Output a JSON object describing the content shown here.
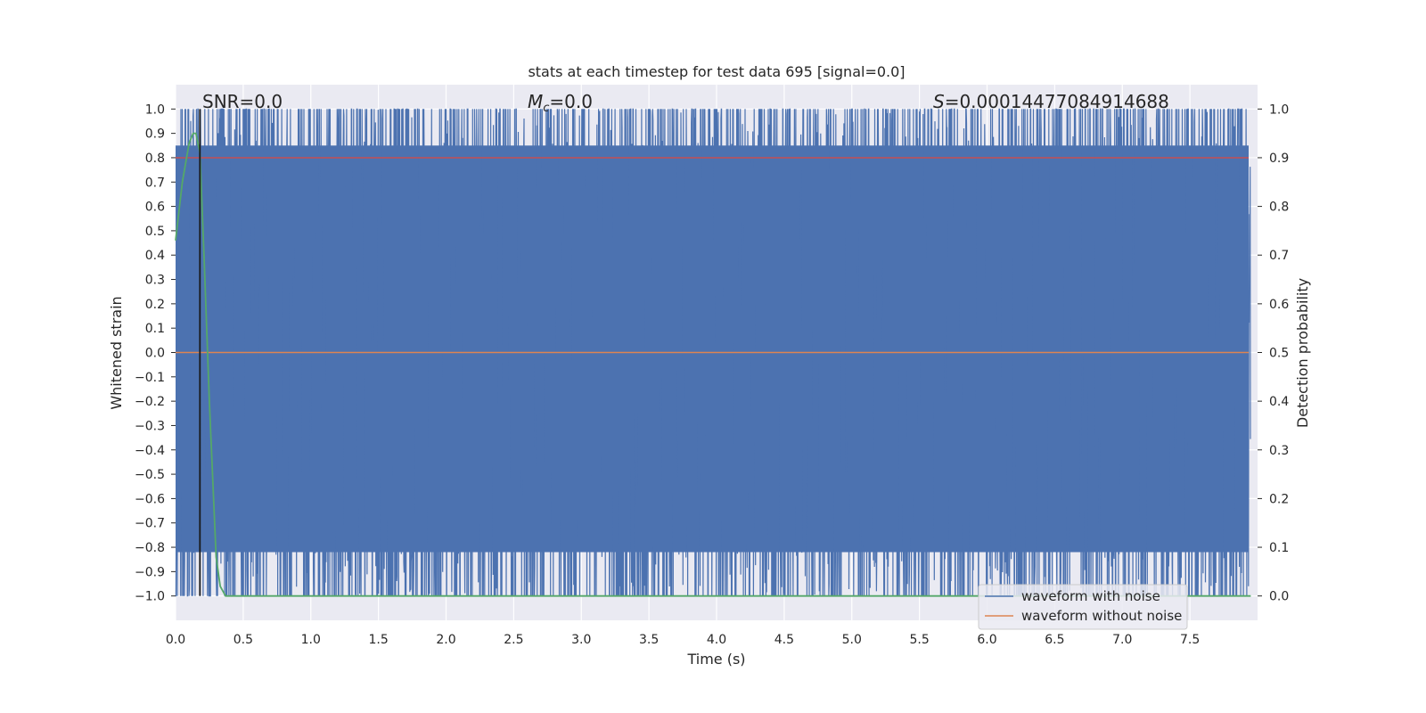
{
  "chart_data": {
    "type": "line",
    "title": "stats at each timestep for test data 695 [signal=0.0]",
    "xlabel": "Time (s)",
    "ylabel": "Whitened strain",
    "y2label": "Detection probability",
    "xlim": [
      0.0,
      8.0
    ],
    "ylim": [
      -1.1,
      1.1
    ],
    "y2lim": [
      -0.05,
      1.05
    ],
    "x_ticks": [
      "0.0",
      "0.5",
      "1.0",
      "1.5",
      "2.0",
      "2.5",
      "3.0",
      "3.5",
      "4.0",
      "4.5",
      "5.0",
      "5.5",
      "6.0",
      "6.5",
      "7.0",
      "7.5"
    ],
    "y_ticks": [
      "1.0",
      "0.9",
      "0.8",
      "0.7",
      "0.6",
      "0.5",
      "0.4",
      "0.3",
      "0.2",
      "0.1",
      "0.0",
      "−0.1",
      "−0.2",
      "−0.3",
      "−0.4",
      "−0.5",
      "−0.6",
      "−0.7",
      "−0.8",
      "−0.9",
      "−1.0"
    ],
    "y2_ticks": [
      "1.0",
      "0.9",
      "0.8",
      "0.7",
      "0.6",
      "0.5",
      "0.4",
      "0.3",
      "0.2",
      "0.1",
      "0.0"
    ],
    "annotations": {
      "snr": "SNR=0.0",
      "mc_symbol": "M",
      "mc_sub": "c",
      "mc_value": "=0.0",
      "s_symbol": "S",
      "s_value": "=0.00014477084914688"
    },
    "series": [
      {
        "name": "waveform with noise",
        "color": "#4c72b0",
        "description": "whitened noisy strain, dense oscillation clipped to [-1, 1] over 0–8 s"
      },
      {
        "name": "waveform without noise",
        "color": "#dd8452",
        "values_constant": 0.0
      },
      {
        "name": "detection probability",
        "color": "#55a868",
        "axis": "right",
        "x": [
          0.0,
          0.05,
          0.1,
          0.13,
          0.15,
          0.18,
          0.21,
          0.25,
          0.3,
          0.33,
          0.37,
          8.0
        ],
        "y": [
          0.73,
          0.85,
          0.93,
          0.95,
          0.95,
          0.91,
          0.7,
          0.4,
          0.08,
          0.02,
          0.0,
          0.0
        ]
      }
    ],
    "threshold": {
      "value": 0.9,
      "axis": "right",
      "color": "#c44e52"
    },
    "marker_time": 0.18,
    "marker_color": "#1a1a1a",
    "legend": {
      "placement": "lower-right",
      "entries": [
        "waveform with noise",
        "waveform without noise"
      ]
    }
  }
}
